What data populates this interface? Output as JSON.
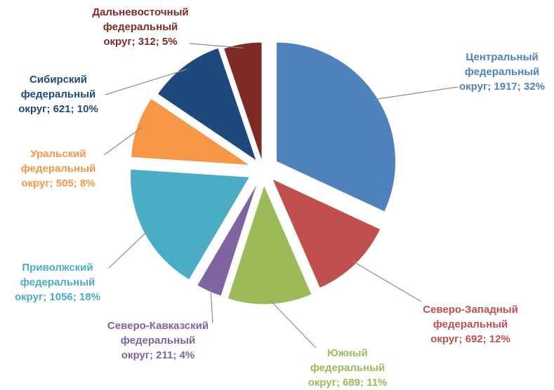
{
  "chart_data": {
    "type": "pie",
    "title": "",
    "exploded": true,
    "value_unit": "",
    "slices": [
      {
        "name": "Центральный федеральный округ",
        "value": 1917,
        "percent": 32,
        "color": "#4f81bd",
        "label_lines": [
          "Центральный",
          "федеральный",
          "округ; 1917; 32%"
        ]
      },
      {
        "name": "Северо-Западный федеральный округ",
        "value": 692,
        "percent": 12,
        "color": "#c0504d",
        "label_lines": [
          "Северо-Западный",
          "федеральный",
          "округ; 692; 12%"
        ]
      },
      {
        "name": "Южный федеральный округ",
        "value": 689,
        "percent": 11,
        "color": "#9bbb59",
        "label_lines": [
          "Южный",
          "федеральный",
          "округ; 689; 11%"
        ]
      },
      {
        "name": "Северо-Кавказский федеральный округ",
        "value": 211,
        "percent": 4,
        "color": "#8064a2",
        "label_lines": [
          "Северо-Кавказский",
          "федеральный",
          "округ; 211; 4%"
        ]
      },
      {
        "name": "Приволжский федеральный округ",
        "value": 1056,
        "percent": 18,
        "color": "#4bacc6",
        "label_lines": [
          "Приволжский",
          "федеральный",
          "округ; 1056; 18%"
        ]
      },
      {
        "name": "Уральский федеральный округ",
        "value": 505,
        "percent": 8,
        "color": "#f79646",
        "label_lines": [
          "Уральский",
          "федеральный",
          "округ; 505; 8%"
        ]
      },
      {
        "name": "Сибирский федеральный округ",
        "value": 621,
        "percent": 10,
        "color": "#1f497d",
        "label_lines": [
          "Сибирский",
          "федеральный",
          "округ; 621; 10%"
        ]
      },
      {
        "name": "Дальневосточный федеральный округ",
        "value": 312,
        "percent": 5,
        "color": "#7f2a24",
        "label_lines": [
          "Дальневосточный",
          "федеральный",
          "округ; 312; 5%"
        ]
      }
    ]
  }
}
